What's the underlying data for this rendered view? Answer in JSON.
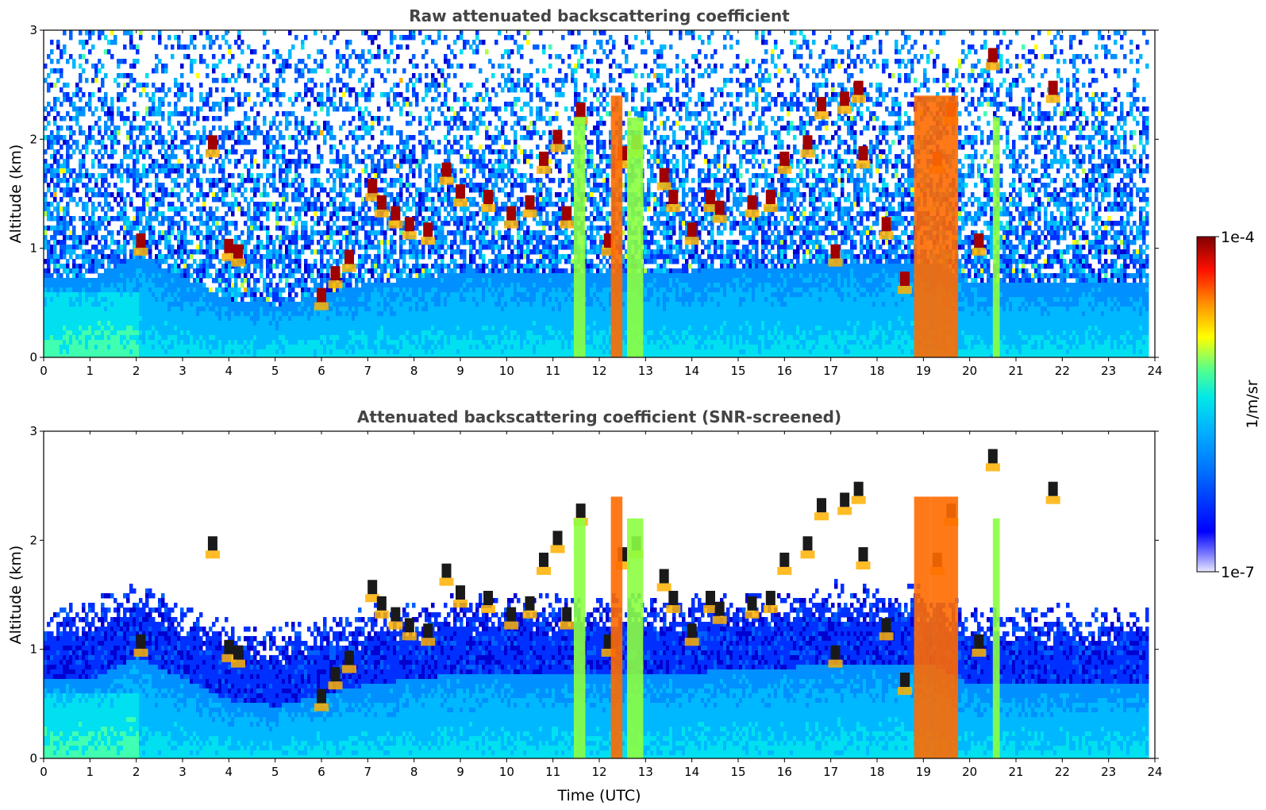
{
  "chart_data": [
    {
      "type": "heatmap",
      "title": "Raw attenuated backscattering coefficient",
      "xlabel": "",
      "ylabel": "Altitude (km)",
      "xlim": [
        0,
        24
      ],
      "ylim": [
        0,
        3
      ],
      "x_ticks": [
        "0",
        "1",
        "2",
        "3",
        "4",
        "5",
        "6",
        "7",
        "8",
        "9",
        "10",
        "11",
        "12",
        "13",
        "14",
        "15",
        "16",
        "17",
        "18",
        "19",
        "20",
        "21",
        "22",
        "23",
        "24"
      ],
      "y_ticks": [
        "0",
        "1",
        "2",
        "3"
      ],
      "screened": false,
      "features": {
        "boundary_layer_height_km": [
          [
            0,
            0.75
          ],
          [
            1,
            0.75
          ],
          [
            2,
            0.95
          ],
          [
            3,
            0.75
          ],
          [
            4,
            0.55
          ],
          [
            5,
            0.5
          ],
          [
            6,
            0.6
          ],
          [
            7,
            0.7
          ],
          [
            8,
            0.75
          ],
          [
            9,
            0.8
          ],
          [
            10,
            0.8
          ],
          [
            11,
            0.8
          ],
          [
            12,
            0.8
          ],
          [
            13,
            0.8
          ],
          [
            14,
            0.8
          ],
          [
            15,
            0.85
          ],
          [
            16,
            0.85
          ],
          [
            17,
            0.9
          ],
          [
            18,
            0.9
          ],
          [
            19,
            0.9
          ],
          [
            20,
            0.7
          ],
          [
            21,
            0.7
          ],
          [
            22,
            0.7
          ],
          [
            23,
            0.7
          ],
          [
            23.8,
            0.7
          ]
        ],
        "cloud_base_layers": [
          {
            "t": 2.1,
            "h": 1.1
          },
          {
            "t": 3.65,
            "h": 2.0
          },
          {
            "t": 4.0,
            "h": 1.05
          },
          {
            "t": 4.2,
            "h": 1.0
          },
          {
            "t": 6.0,
            "h": 0.6
          },
          {
            "t": 6.3,
            "h": 0.8
          },
          {
            "t": 6.6,
            "h": 0.95
          },
          {
            "t": 7.1,
            "h": 1.6
          },
          {
            "t": 7.3,
            "h": 1.45
          },
          {
            "t": 7.6,
            "h": 1.35
          },
          {
            "t": 7.9,
            "h": 1.25
          },
          {
            "t": 8.3,
            "h": 1.2
          },
          {
            "t": 8.7,
            "h": 1.75
          },
          {
            "t": 9.0,
            "h": 1.55
          },
          {
            "t": 9.6,
            "h": 1.5
          },
          {
            "t": 10.1,
            "h": 1.35
          },
          {
            "t": 10.5,
            "h": 1.45
          },
          {
            "t": 10.8,
            "h": 1.85
          },
          {
            "t": 11.1,
            "h": 2.05
          },
          {
            "t": 11.3,
            "h": 1.35
          },
          {
            "t": 11.6,
            "h": 2.3
          },
          {
            "t": 12.2,
            "h": 1.1
          },
          {
            "t": 12.5,
            "h": 1.9
          },
          {
            "t": 12.8,
            "h": 2.0
          },
          {
            "t": 13.4,
            "h": 1.7
          },
          {
            "t": 13.6,
            "h": 1.5
          },
          {
            "t": 14.0,
            "h": 1.2
          },
          {
            "t": 14.4,
            "h": 1.5
          },
          {
            "t": 14.6,
            "h": 1.4
          },
          {
            "t": 15.3,
            "h": 1.45
          },
          {
            "t": 15.7,
            "h": 1.5
          },
          {
            "t": 16.0,
            "h": 1.85
          },
          {
            "t": 16.5,
            "h": 2.0
          },
          {
            "t": 16.8,
            "h": 2.35
          },
          {
            "t": 17.1,
            "h": 1.0
          },
          {
            "t": 17.3,
            "h": 2.4
          },
          {
            "t": 17.6,
            "h": 2.5
          },
          {
            "t": 17.7,
            "h": 1.9
          },
          {
            "t": 18.2,
            "h": 1.25
          },
          {
            "t": 18.6,
            "h": 0.75
          },
          {
            "t": 19.3,
            "h": 1.85
          },
          {
            "t": 19.6,
            "h": 2.3
          },
          {
            "t": 20.2,
            "h": 1.1
          },
          {
            "t": 20.5,
            "h": 2.8
          },
          {
            "t": 21.8,
            "h": 2.5
          }
        ],
        "precipitation_columns": [
          {
            "t0": 11.45,
            "t1": 11.7,
            "intensity": "medium"
          },
          {
            "t0": 12.25,
            "t1": 12.5,
            "intensity": "high"
          },
          {
            "t0": 12.6,
            "t1": 12.95,
            "intensity": "medium"
          },
          {
            "t0": 18.8,
            "t1": 19.15,
            "intensity": "high"
          },
          {
            "t0": 19.15,
            "t1": 19.75,
            "intensity": "high"
          },
          {
            "t0": 20.5,
            "t1": 20.65,
            "intensity": "medium"
          }
        ]
      }
    },
    {
      "type": "heatmap",
      "title": "Attenuated backscattering coefficient (SNR-screened)",
      "xlabel": "Time (UTC)",
      "ylabel": "Altitude (km)",
      "xlim": [
        0,
        24
      ],
      "ylim": [
        0,
        3
      ],
      "x_ticks": [
        "0",
        "1",
        "2",
        "3",
        "4",
        "5",
        "6",
        "7",
        "8",
        "9",
        "10",
        "11",
        "12",
        "13",
        "14",
        "15",
        "16",
        "17",
        "18",
        "19",
        "20",
        "21",
        "22",
        "23",
        "24"
      ],
      "y_ticks": [
        "0",
        "1",
        "2",
        "3"
      ],
      "screened": true
    }
  ],
  "colorbar": {
    "label": "1/m/sr",
    "max_label": "1e-4",
    "min_label": "1e-7",
    "colormap": [
      "#ffffff",
      "#0000ff",
      "#00a0ff",
      "#00ffff",
      "#40ff80",
      "#ffff00",
      "#ff8000",
      "#ff0000",
      "#800000"
    ]
  }
}
